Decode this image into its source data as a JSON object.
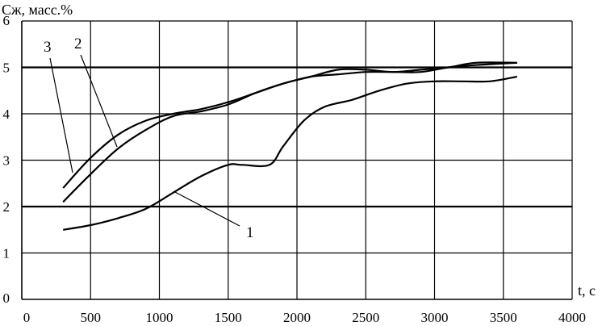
{
  "chart_data": {
    "type": "line",
    "title": "",
    "ylabel": "Сж, масс.%",
    "xlabel": "t, с",
    "xlim": [
      0,
      4000
    ],
    "ylim": [
      0,
      6
    ],
    "xticks": [
      "0",
      "500",
      "1000",
      "1500",
      "2000",
      "2500",
      "3000",
      "3500",
      "4000"
    ],
    "yticks": [
      "0",
      "1",
      "2",
      "3",
      "4",
      "5",
      "6"
    ],
    "grid": true,
    "series": [
      {
        "name": "1",
        "x": [
          300,
          500,
          700,
          900,
          1100,
          1300,
          1500,
          1600,
          1800,
          1900,
          2050,
          2200,
          2400,
          2600,
          2800,
          3000,
          3200,
          3400,
          3600
        ],
        "y": [
          1.5,
          1.6,
          1.75,
          1.95,
          2.3,
          2.65,
          2.9,
          2.9,
          2.9,
          3.3,
          3.85,
          4.15,
          4.3,
          4.5,
          4.65,
          4.7,
          4.7,
          4.7,
          4.8
        ]
      },
      {
        "name": "2",
        "x": [
          300,
          500,
          700,
          900,
          1100,
          1300,
          1500,
          1700,
          1900,
          2100,
          2300,
          2500,
          2700,
          2900,
          3100,
          3300,
          3600
        ],
        "y": [
          2.1,
          2.7,
          3.25,
          3.65,
          3.95,
          4.05,
          4.2,
          4.45,
          4.65,
          4.8,
          4.85,
          4.9,
          4.9,
          4.9,
          5.0,
          5.05,
          5.1
        ]
      },
      {
        "name": "3",
        "x": [
          300,
          500,
          700,
          900,
          1100,
          1300,
          1500,
          1700,
          1900,
          2100,
          2300,
          2500,
          2700,
          2900,
          3100,
          3300,
          3600
        ],
        "y": [
          2.4,
          3.05,
          3.55,
          3.85,
          4.0,
          4.1,
          4.25,
          4.45,
          4.65,
          4.8,
          4.95,
          4.95,
          4.9,
          4.95,
          5.0,
          5.1,
          5.1
        ]
      }
    ]
  }
}
